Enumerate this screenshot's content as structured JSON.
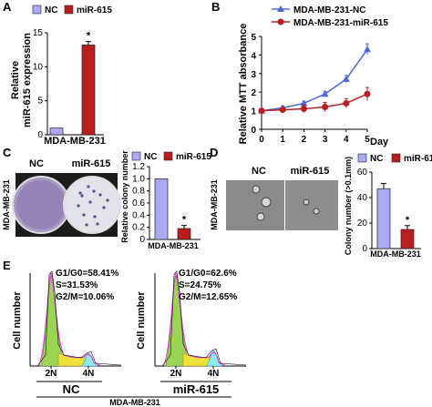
{
  "colors": {
    "nc": "#a9a9f5",
    "mir": "#b81e1e",
    "nc_line": "#4b68d8",
    "mir_line": "#b81e1e",
    "hist_green": "#9bd454",
    "hist_yellow": "#f0e03a",
    "hist_cyan": "#8ee8f0",
    "hist_magenta": "#e030e0"
  },
  "panels": [
    "A",
    "B",
    "C",
    "D",
    "E"
  ],
  "legend": {
    "nc": "NC",
    "mir": "miR-615"
  },
  "cell_line": "MDA-MB-231",
  "chart_data": [
    {
      "id": "A",
      "type": "bar",
      "categories": [
        "NC",
        "miR-615"
      ],
      "values": [
        1,
        13.2
      ],
      "errors": [
        0,
        0.5
      ],
      "ylabel": "Relative\nmiR-615 expression",
      "xlabel": "MDA-MB-231",
      "ylim": [
        0,
        15
      ],
      "yticks": [
        "0",
        "5",
        "10",
        "15"
      ],
      "annotations": [
        "*"
      ]
    },
    {
      "id": "B",
      "type": "line",
      "x": [
        0,
        1,
        2,
        3,
        4,
        5
      ],
      "xticks": [
        "0",
        "1",
        "2",
        "3",
        "4",
        "5"
      ],
      "xunit": "Day",
      "ylabel": "Relative MTT absorbance",
      "ylim": [
        0,
        5
      ],
      "yticks": [
        "0",
        "1",
        "2",
        "3",
        "4",
        "5"
      ],
      "series": [
        {
          "name": "MDA-MB-231-NC",
          "values": [
            1.0,
            1.15,
            1.4,
            1.9,
            2.7,
            4.3
          ],
          "errors": [
            0.08,
            0.1,
            0.12,
            0.15,
            0.2,
            0.3
          ]
        },
        {
          "name": "MDA-MB-231-miR-615",
          "values": [
            1.0,
            1.05,
            1.1,
            1.2,
            1.4,
            1.9
          ],
          "errors": [
            0.08,
            0.12,
            0.2,
            0.25,
            0.25,
            0.35
          ]
        }
      ]
    },
    {
      "id": "C",
      "type": "bar",
      "categories": [
        "NC",
        "miR-615"
      ],
      "values": [
        1.0,
        0.18
      ],
      "errors": [
        0,
        0.05
      ],
      "ylabel": "Relative colony number",
      "xlabel": "MDA-MB-231",
      "ylim": [
        0,
        1.2
      ],
      "yticks": [
        "0",
        "0.2",
        "0.4",
        "0.6",
        "0.8",
        "1.0",
        "1.2"
      ],
      "annotations": [
        "*"
      ]
    },
    {
      "id": "D",
      "type": "bar",
      "categories": [
        "NC",
        "miR-615"
      ],
      "values": [
        47,
        15
      ],
      "errors": [
        4,
        3
      ],
      "ylabel": "Colony number (>0.1mm)",
      "xlabel": "MDA-MB-231",
      "ylim": [
        0,
        60
      ],
      "yticks": [
        "0",
        "20",
        "40",
        "60"
      ],
      "annotations": [
        "*"
      ]
    }
  ],
  "images": {
    "C": {
      "left_label": "NC",
      "right_label": "miR-615",
      "side_label": "MDA-MB-231"
    },
    "D": {
      "left_label": "NC",
      "right_label": "miR-615",
      "side_label": "MDA-MB-231"
    }
  },
  "flow": {
    "ylabel": "Cell number",
    "peak_labels": [
      "2N",
      "4N"
    ],
    "xlabel": "MDA-MB-231",
    "nc": {
      "label": "NC",
      "g1": "G1/G0=58.41%",
      "s": "S=31.53%",
      "g2": "G2/M=10.06%"
    },
    "mir": {
      "label": "miR-615",
      "g1": "G1/G0=62.6%",
      "s": "S=24.75%",
      "g2": "G2/M=12.65%"
    }
  }
}
